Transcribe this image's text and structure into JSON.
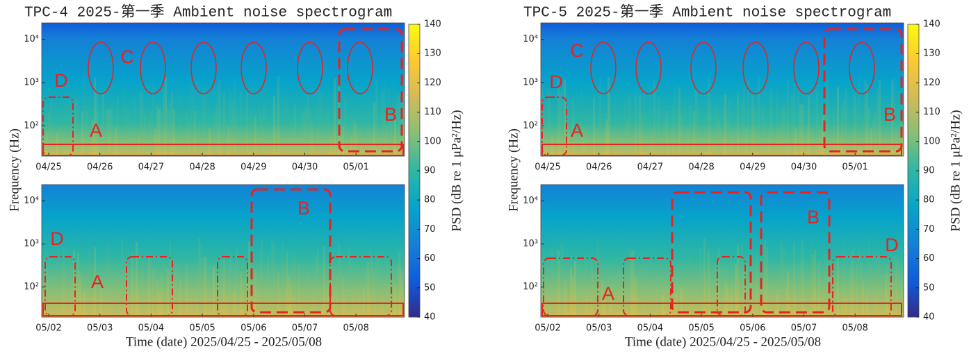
{
  "chart_data": [
    {
      "type": "spectrogram",
      "title": "TPC-4 2025-第一季 Ambient noise spectrogram",
      "ylabel": "Frequency (Hz)",
      "xlabel": "Time (date) 2025/04/25 - 2025/05/08",
      "yscale": "log",
      "colormap": [
        "#352a87",
        "#0f5cdd",
        "#1481d6",
        "#06a4ca",
        "#2eb7a4",
        "#87bf77",
        "#d1bb59",
        "#fec832",
        "#f9fb0e"
      ],
      "panels": [
        {
          "categories": [
            "04/25",
            "04/26",
            "04/27",
            "04/28",
            "04/29",
            "04/30",
            "05/01"
          ],
          "ylim": [
            20,
            24000
          ],
          "yticks": [
            {
              "value": 100,
              "label": "10²"
            },
            {
              "value": 1000,
              "label": "10³"
            },
            {
              "value": 10000,
              "label": "10⁴"
            }
          ],
          "annotations": [
            "C",
            "D",
            "A",
            "B"
          ]
        },
        {
          "categories": [
            "05/02",
            "05/03",
            "05/04",
            "05/05",
            "05/06",
            "05/07",
            "05/08"
          ],
          "ylim": [
            20,
            24000
          ],
          "yticks": [
            {
              "value": 100,
              "label": "10²"
            },
            {
              "value": 1000,
              "label": "10³"
            },
            {
              "value": 10000,
              "label": "10⁴"
            }
          ],
          "annotations": [
            "D",
            "B",
            "A"
          ]
        }
      ],
      "colorbar": {
        "clim": [
          40,
          140
        ],
        "ticks": [
          40,
          50,
          60,
          70,
          80,
          90,
          100,
          110,
          120,
          130,
          140
        ],
        "label": "PSD (dB re 1 μPa²/Hz)"
      }
    },
    {
      "type": "spectrogram",
      "title": "TPC-5 2025-第一季 Ambient noise spectrogram",
      "ylabel": "Frequency (Hz)",
      "xlabel": "Time (date) 2025/04/25 - 2025/05/08",
      "yscale": "log",
      "colormap": [
        "#352a87",
        "#0f5cdd",
        "#1481d6",
        "#06a4ca",
        "#2eb7a4",
        "#87bf77",
        "#d1bb59",
        "#fec832",
        "#f9fb0e"
      ],
      "panels": [
        {
          "categories": [
            "04/25",
            "04/26",
            "04/27",
            "04/28",
            "04/29",
            "04/30",
            "05/01"
          ],
          "ylim": [
            20,
            24000
          ],
          "yticks": [
            {
              "value": 100,
              "label": "10²"
            },
            {
              "value": 1000,
              "label": "10³"
            },
            {
              "value": 10000,
              "label": "10⁴"
            }
          ],
          "annotations": [
            "C",
            "D",
            "A",
            "B"
          ]
        },
        {
          "categories": [
            "05/02",
            "05/03",
            "05/04",
            "05/05",
            "05/06",
            "05/07",
            "05/08"
          ],
          "ylim": [
            20,
            24000
          ],
          "yticks": [
            {
              "value": 100,
              "label": "10²"
            },
            {
              "value": 1000,
              "label": "10³"
            },
            {
              "value": 10000,
              "label": "10⁴"
            }
          ],
          "annotations": [
            "B",
            "A",
            "D"
          ]
        }
      ],
      "colorbar": {
        "clim": [
          40,
          140
        ],
        "ticks": [
          40,
          50,
          60,
          70,
          80,
          90,
          100,
          110,
          120,
          130,
          140
        ],
        "label": "PSD (dB re 1 μPa²/Hz)"
      }
    }
  ]
}
